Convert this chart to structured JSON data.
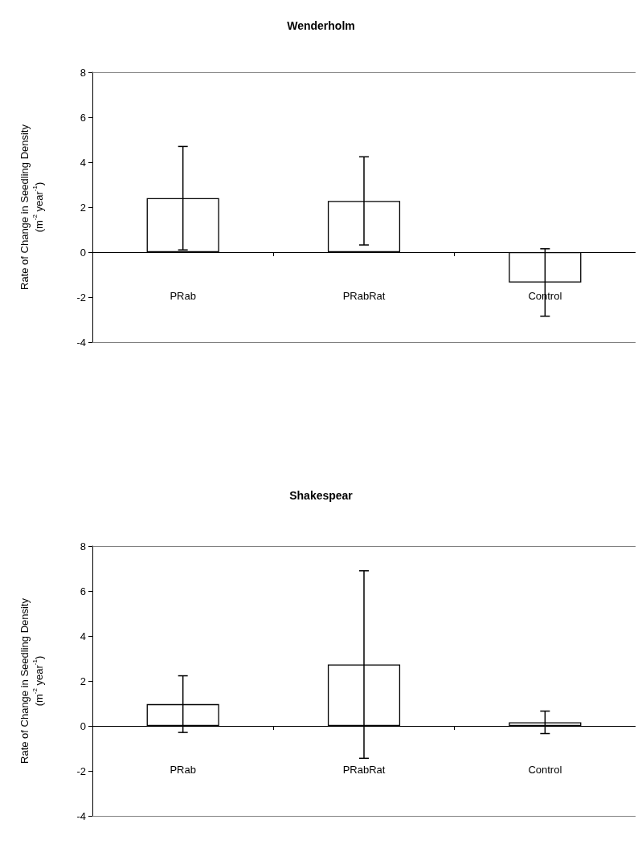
{
  "chart_data": [
    {
      "type": "bar",
      "title": "Wenderholm",
      "ylabel": "Rate of Change in Seedling Density\n(m$^{-2}$ year$^{-1}$)",
      "categories": [
        "PRab",
        "PRabRat",
        "Control"
      ],
      "values": [
        2.4,
        2.28,
        -1.35
      ],
      "errors": [
        2.3,
        1.96,
        1.5
      ],
      "color": "#ffffff",
      "ylim": [
        -4,
        8
      ],
      "yticks": [
        -4,
        -2,
        0,
        2,
        4,
        6,
        8
      ]
    },
    {
      "type": "bar",
      "title": "Shakespear",
      "ylabel": "Rate of Change in Seedling Density\n(m$^{-2}$ year$^{-1}$)",
      "categories": [
        "PRab",
        "PRabRat",
        "Control"
      ],
      "values": [
        0.97,
        2.73,
        0.16
      ],
      "errors": [
        1.26,
        4.17,
        0.5
      ],
      "color": "#ffffff",
      "ylim": [
        -4,
        8
      ],
      "yticks": [
        -4,
        -2,
        0,
        2,
        4,
        6,
        8
      ]
    }
  ]
}
